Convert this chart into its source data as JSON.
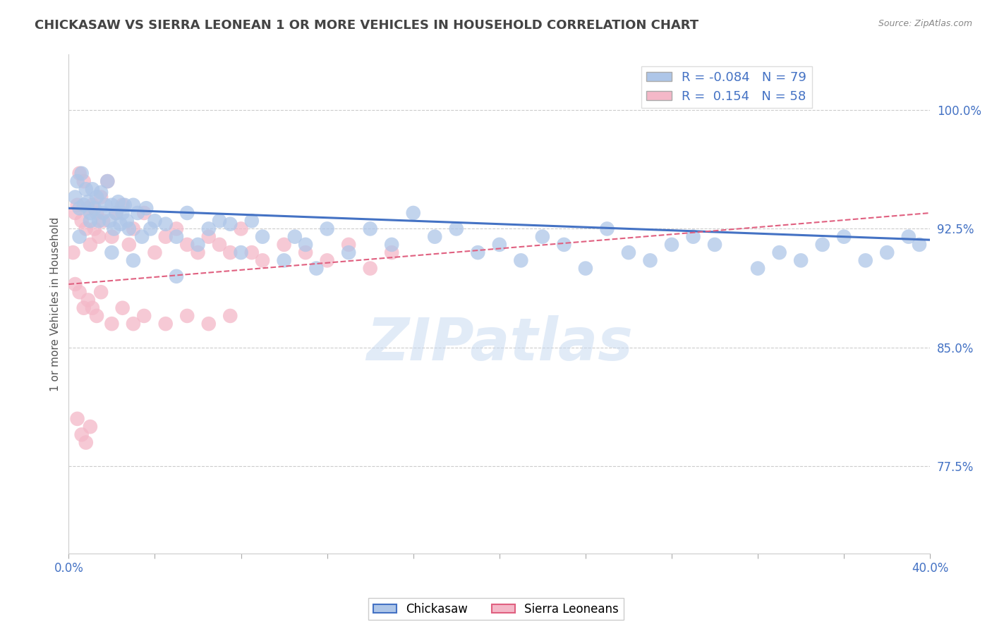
{
  "title": "CHICKASAW VS SIERRA LEONEAN 1 OR MORE VEHICLES IN HOUSEHOLD CORRELATION CHART",
  "source": "Source: ZipAtlas.com",
  "ylabel": "1 or more Vehicles in Household",
  "xlim": [
    0.0,
    40.0
  ],
  "ylim": [
    72.0,
    103.5
  ],
  "yticks": [
    77.5,
    85.0,
    92.5,
    100.0
  ],
  "xticks": [
    0.0,
    4.0,
    8.0,
    12.0,
    16.0,
    20.0,
    24.0,
    28.0,
    32.0,
    36.0,
    40.0
  ],
  "ytick_labels": [
    "77.5%",
    "85.0%",
    "92.5%",
    "100.0%"
  ],
  "chickasaw_R": -0.084,
  "chickasaw_N": 79,
  "sierra_R": 0.154,
  "sierra_N": 58,
  "chickasaw_color": "#aec6e8",
  "sierra_color": "#f4b8c8",
  "chickasaw_line_color": "#4472c4",
  "sierra_line_color": "#e06080",
  "title_color": "#444444",
  "source_color": "#888888",
  "watermark": "ZIPatlas",
  "watermark_color": "#c5d8f0",
  "legend_color": "#4472c4",
  "chickasaw_x": [
    0.3,
    0.4,
    0.5,
    0.6,
    0.7,
    0.8,
    0.9,
    1.0,
    1.1,
    1.2,
    1.3,
    1.4,
    1.5,
    1.6,
    1.7,
    1.8,
    1.9,
    2.0,
    2.1,
    2.2,
    2.3,
    2.4,
    2.5,
    2.6,
    2.7,
    2.8,
    3.0,
    3.2,
    3.4,
    3.6,
    3.8,
    4.0,
    4.5,
    5.0,
    5.5,
    6.0,
    6.5,
    7.0,
    7.5,
    8.0,
    8.5,
    9.0,
    10.0,
    10.5,
    11.0,
    11.5,
    12.0,
    13.0,
    14.0,
    15.0,
    16.0,
    17.0,
    18.0,
    19.0,
    20.0,
    21.0,
    22.0,
    23.0,
    24.0,
    25.0,
    26.0,
    27.0,
    28.0,
    29.0,
    30.0,
    32.0,
    33.0,
    34.0,
    35.0,
    36.0,
    37.0,
    38.0,
    39.0,
    39.5,
    0.5,
    1.0,
    2.0,
    3.0,
    5.0
  ],
  "chickasaw_y": [
    94.5,
    95.5,
    93.8,
    96.0,
    94.0,
    95.0,
    94.2,
    93.5,
    95.0,
    93.8,
    94.5,
    93.0,
    94.8,
    93.5,
    94.0,
    95.5,
    93.0,
    94.0,
    92.5,
    93.5,
    94.2,
    92.8,
    93.5,
    94.0,
    93.0,
    92.5,
    94.0,
    93.5,
    92.0,
    93.8,
    92.5,
    93.0,
    92.8,
    92.0,
    93.5,
    91.5,
    92.5,
    93.0,
    92.8,
    91.0,
    93.0,
    92.0,
    90.5,
    92.0,
    91.5,
    90.0,
    92.5,
    91.0,
    92.5,
    91.5,
    93.5,
    92.0,
    92.5,
    91.0,
    91.5,
    90.5,
    92.0,
    91.5,
    90.0,
    92.5,
    91.0,
    90.5,
    91.5,
    92.0,
    91.5,
    90.0,
    91.0,
    90.5,
    91.5,
    92.0,
    90.5,
    91.0,
    92.0,
    91.5,
    92.0,
    93.0,
    91.0,
    90.5,
    89.5
  ],
  "sierra_x": [
    0.2,
    0.3,
    0.4,
    0.5,
    0.6,
    0.7,
    0.8,
    0.9,
    1.0,
    1.1,
    1.2,
    1.3,
    1.4,
    1.5,
    1.6,
    1.8,
    2.0,
    2.2,
    2.5,
    2.8,
    3.0,
    3.5,
    4.0,
    4.5,
    5.0,
    5.5,
    6.0,
    6.5,
    7.0,
    7.5,
    8.0,
    8.5,
    9.0,
    10.0,
    11.0,
    12.0,
    13.0,
    14.0,
    15.0,
    0.3,
    0.5,
    0.7,
    0.9,
    1.1,
    1.3,
    1.5,
    2.0,
    2.5,
    3.0,
    3.5,
    4.5,
    5.5,
    6.5,
    7.5,
    0.4,
    0.6,
    0.8,
    1.0
  ],
  "sierra_y": [
    91.0,
    93.5,
    94.0,
    96.0,
    93.0,
    95.5,
    92.5,
    93.8,
    91.5,
    94.0,
    92.5,
    93.5,
    92.0,
    94.5,
    93.0,
    95.5,
    92.0,
    93.5,
    94.0,
    91.5,
    92.5,
    93.5,
    91.0,
    92.0,
    92.5,
    91.5,
    91.0,
    92.0,
    91.5,
    91.0,
    92.5,
    91.0,
    90.5,
    91.5,
    91.0,
    90.5,
    91.5,
    90.0,
    91.0,
    89.0,
    88.5,
    87.5,
    88.0,
    87.5,
    87.0,
    88.5,
    86.5,
    87.5,
    86.5,
    87.0,
    86.5,
    87.0,
    86.5,
    87.0,
    80.5,
    79.5,
    79.0,
    80.0
  ]
}
